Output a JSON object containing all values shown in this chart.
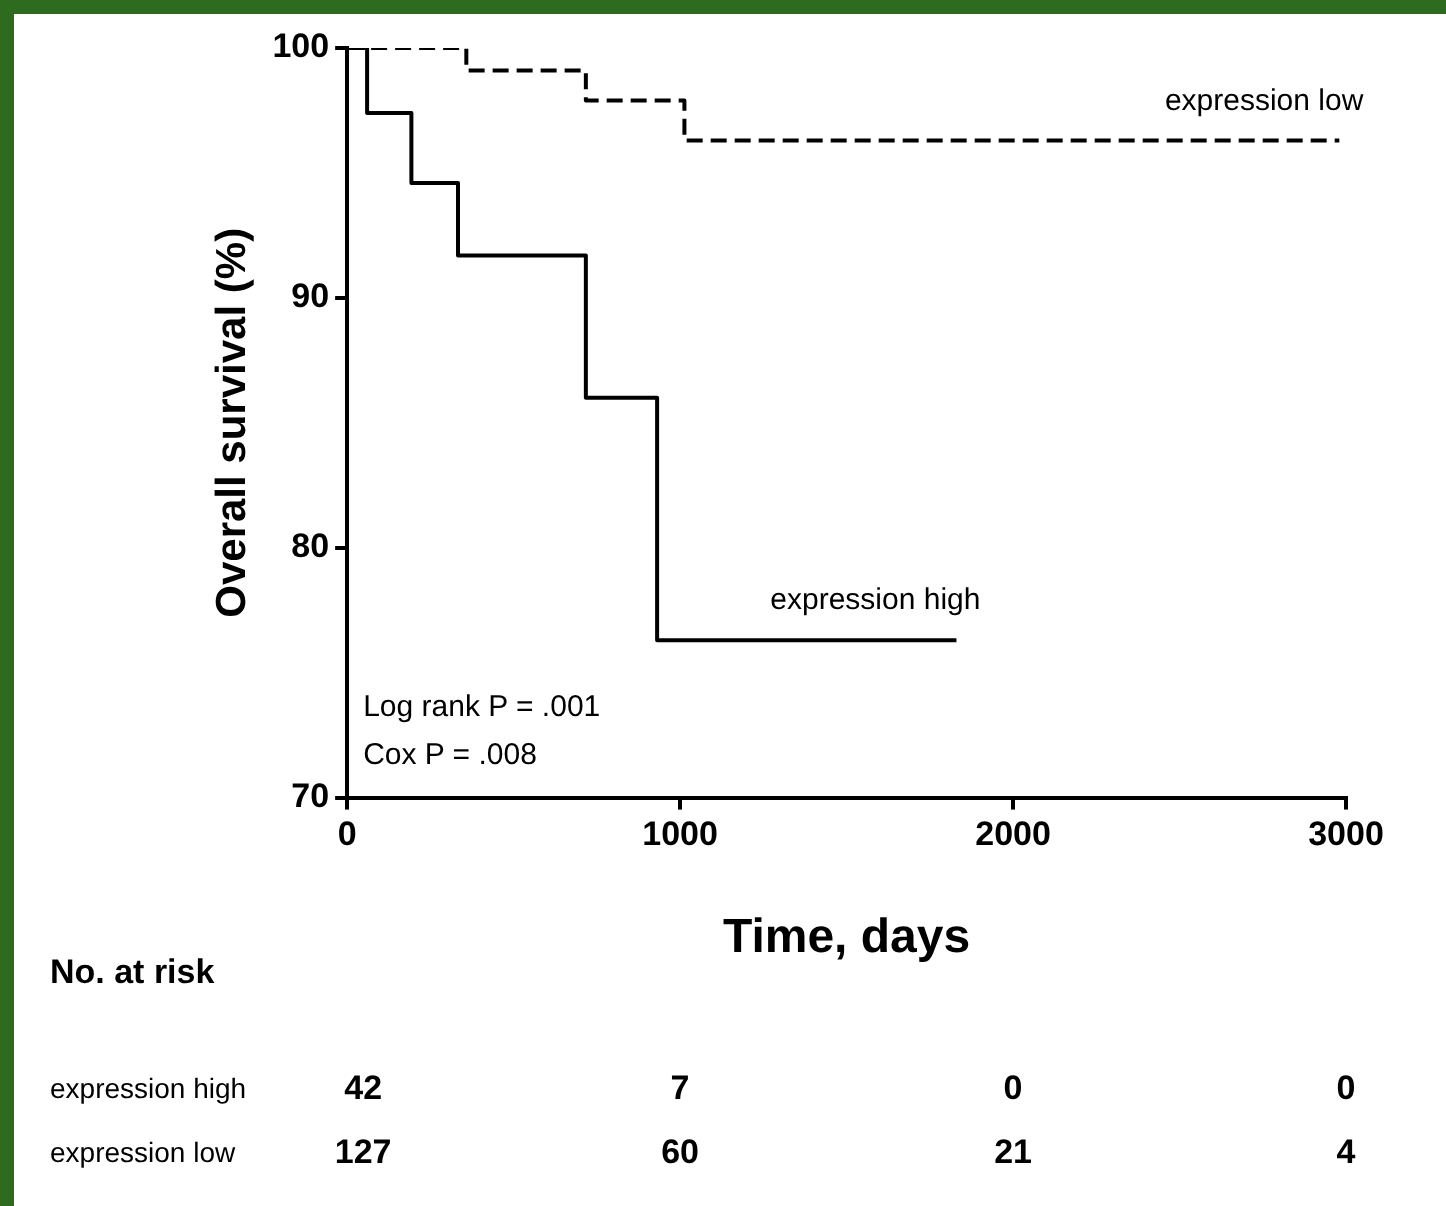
{
  "chart_data": {
    "type": "step",
    "xlabel": "Time, days",
    "ylabel": "Overall survival (%)",
    "xlim": [
      0,
      3000
    ],
    "xticks": [
      0,
      1000,
      2000,
      3000
    ],
    "ylim": [
      70,
      100
    ],
    "yticks": [
      70,
      80,
      90,
      100
    ],
    "grid": false,
    "legend": false,
    "marker": "none",
    "series": [
      {
        "name": "expression high",
        "color": "#000000",
        "line_style": "solid",
        "x": [
          0,
          60,
          193,
          333,
          717,
          931,
          1830
        ],
        "values": [
          100,
          97.4,
          94.6,
          91.7,
          86.0,
          76.3,
          76.3
        ]
      },
      {
        "name": "expression low",
        "color": "#000000",
        "line_style": "dashed",
        "x": [
          0,
          358,
          717,
          1013,
          2980
        ],
        "values": [
          100,
          99.1,
          97.9,
          96.3,
          96.3
        ]
      }
    ],
    "annotations": [
      "Log rank P = .001",
      "Cox P = .008",
      "No. at risk",
      "expression high",
      "42",
      "7",
      "0",
      "0",
      "expression low",
      "127",
      "60",
      "21",
      "4"
    ]
  }
}
